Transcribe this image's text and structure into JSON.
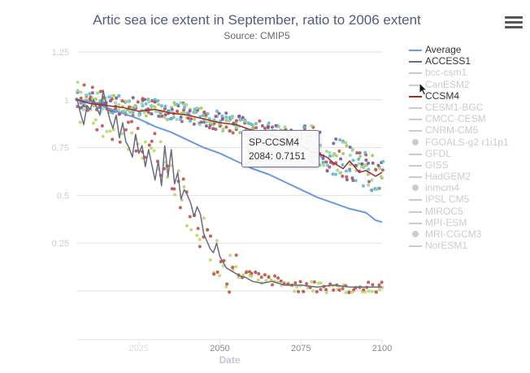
{
  "chart_data": {
    "type": "line",
    "title": "Artic sea ice extent in September, ratio to 2006 extent",
    "subtitle": "Source: CMIP5",
    "xlabel": "Date",
    "ylabel": "",
    "xlim": [
      2006,
      2100
    ],
    "ylim": [
      0,
      1.25
    ],
    "x_ticks": [
      {
        "value": 2025,
        "label": "2025"
      },
      {
        "value": 2050,
        "label": "2050"
      },
      {
        "value": 2075,
        "label": "2075"
      },
      {
        "value": 2100,
        "label": "2100"
      }
    ],
    "y_ticks": [
      {
        "value": 0.25,
        "label": "0.25"
      },
      {
        "value": 0.5,
        "label": "0.5"
      },
      {
        "value": 0.75,
        "label": "0.75"
      },
      {
        "value": 1,
        "label": "1"
      },
      {
        "value": 1.25,
        "label": "1.25"
      }
    ],
    "legend_position": "right",
    "series": [
      {
        "name": "Average",
        "style": "line",
        "color": "#6a9ae0",
        "visible": true,
        "points": [
          [
            2006,
            1.0
          ],
          [
            2010,
            0.99
          ],
          [
            2015,
            0.96
          ],
          [
            2020,
            0.93
          ],
          [
            2025,
            0.9
          ],
          [
            2030,
            0.86
          ],
          [
            2035,
            0.83
          ],
          [
            2040,
            0.79
          ],
          [
            2045,
            0.75
          ],
          [
            2050,
            0.72
          ],
          [
            2055,
            0.68
          ],
          [
            2060,
            0.64
          ],
          [
            2065,
            0.61
          ],
          [
            2070,
            0.57
          ],
          [
            2075,
            0.53
          ],
          [
            2080,
            0.49
          ],
          [
            2085,
            0.46
          ],
          [
            2090,
            0.43
          ],
          [
            2095,
            0.41
          ],
          [
            2098,
            0.37
          ],
          [
            2100,
            0.36
          ]
        ]
      },
      {
        "name": "ACCESS1",
        "style": "line",
        "color": "#6b6b80",
        "visible": true,
        "points": [
          [
            2006,
            1.0
          ],
          [
            2007,
            0.93
          ],
          [
            2008,
            0.87
          ],
          [
            2009,
            0.97
          ],
          [
            2010,
            0.95
          ],
          [
            2011,
            1.0
          ],
          [
            2012,
            0.96
          ],
          [
            2013,
            0.92
          ],
          [
            2014,
            1.05
          ],
          [
            2015,
            0.97
          ],
          [
            2016,
            0.9
          ],
          [
            2017,
            0.85
          ],
          [
            2018,
            0.92
          ],
          [
            2019,
            0.8
          ],
          [
            2020,
            0.88
          ],
          [
            2021,
            0.78
          ],
          [
            2022,
            0.75
          ],
          [
            2023,
            0.7
          ],
          [
            2024,
            0.82
          ],
          [
            2025,
            0.72
          ],
          [
            2026,
            0.76
          ],
          [
            2027,
            0.65
          ],
          [
            2028,
            0.74
          ],
          [
            2029,
            0.66
          ],
          [
            2030,
            0.58
          ],
          [
            2031,
            0.68
          ],
          [
            2032,
            0.55
          ],
          [
            2033,
            0.76
          ],
          [
            2034,
            0.6
          ],
          [
            2035,
            0.74
          ],
          [
            2036,
            0.56
          ],
          [
            2037,
            0.62
          ],
          [
            2038,
            0.48
          ],
          [
            2039,
            0.53
          ],
          [
            2040,
            0.5
          ],
          [
            2041,
            0.46
          ],
          [
            2042,
            0.39
          ],
          [
            2043,
            0.44
          ],
          [
            2044,
            0.4
          ],
          [
            2045,
            0.3
          ],
          [
            2046,
            0.26
          ],
          [
            2047,
            0.22
          ],
          [
            2048,
            0.2
          ],
          [
            2049,
            0.25
          ],
          [
            2050,
            0.18
          ],
          [
            2052,
            0.12
          ],
          [
            2054,
            0.1
          ],
          [
            2056,
            0.08
          ],
          [
            2058,
            0.07
          ],
          [
            2060,
            0.05
          ],
          [
            2063,
            0.04
          ],
          [
            2066,
            0.05
          ],
          [
            2070,
            0.03
          ],
          [
            2075,
            0.03
          ],
          [
            2080,
            0.02
          ],
          [
            2085,
            0.03
          ],
          [
            2090,
            0.02
          ],
          [
            2095,
            0.02
          ],
          [
            2100,
            0.02
          ]
        ]
      },
      {
        "name": "bcc-csm1",
        "style": "line",
        "color": "#cccccc",
        "visible": false,
        "points": []
      },
      {
        "name": "CanESM2",
        "style": "line",
        "color": "#cccccc",
        "visible": false,
        "points": []
      },
      {
        "name": "CCSM4",
        "style": "line",
        "color": "#9e2a2a",
        "visible": true,
        "points": [
          [
            2006,
            1.0
          ],
          [
            2010,
            0.98
          ],
          [
            2015,
            0.97
          ],
          [
            2020,
            0.96
          ],
          [
            2025,
            0.94
          ],
          [
            2030,
            0.95
          ],
          [
            2035,
            0.93
          ],
          [
            2040,
            0.92
          ],
          [
            2045,
            0.9
          ],
          [
            2050,
            0.88
          ],
          [
            2055,
            0.87
          ],
          [
            2060,
            0.84
          ],
          [
            2065,
            0.82
          ],
          [
            2070,
            0.8
          ],
          [
            2075,
            0.76
          ],
          [
            2078,
            0.73
          ],
          [
            2080,
            0.72
          ],
          [
            2083,
            0.7
          ],
          [
            2085,
            0.67
          ],
          [
            2088,
            0.64
          ],
          [
            2090,
            0.68
          ],
          [
            2093,
            0.62
          ],
          [
            2095,
            0.63
          ],
          [
            2098,
            0.6
          ],
          [
            2100,
            0.62
          ]
        ]
      },
      {
        "name": "CESM1-BGC",
        "style": "line",
        "color": "#cccccc",
        "visible": false,
        "points": []
      },
      {
        "name": "CMCC-CESM",
        "style": "line",
        "color": "#cccccc",
        "visible": false,
        "points": []
      },
      {
        "name": "CNRM-CM5",
        "style": "line",
        "color": "#cccccc",
        "visible": false,
        "points": []
      },
      {
        "name": "FGOALS-g2 r1i1p1",
        "style": "scatter",
        "color": "#cccccc",
        "visible": false,
        "points": []
      },
      {
        "name": "GFDL",
        "style": "line",
        "color": "#cccccc",
        "visible": false,
        "points": []
      },
      {
        "name": "GISS",
        "style": "line",
        "color": "#cccccc",
        "visible": false,
        "points": []
      },
      {
        "name": "HadGEM2",
        "style": "line",
        "color": "#cccccc",
        "visible": false,
        "points": []
      },
      {
        "name": "inmcm4",
        "style": "scatter",
        "color": "#cccccc",
        "visible": false,
        "points": []
      },
      {
        "name": "IPSL CM5",
        "style": "line",
        "color": "#cccccc",
        "visible": false,
        "points": []
      },
      {
        "name": "MIROC5",
        "style": "line",
        "color": "#cccccc",
        "visible": false,
        "points": []
      },
      {
        "name": "MPI-ESM",
        "style": "line",
        "color": "#cccccc",
        "visible": false,
        "points": []
      },
      {
        "name": "MRI-CGCM3",
        "style": "scatter",
        "color": "#cccccc",
        "visible": false,
        "points": []
      },
      {
        "name": "NorESM1",
        "style": "line",
        "color": "#cccccc",
        "visible": false,
        "points": []
      }
    ],
    "scatter_clusters": [
      {
        "color": "#a7c957",
        "upper": true
      },
      {
        "color": "#b9d96a",
        "upper": false
      },
      {
        "color": "#c0504d",
        "upper": true
      },
      {
        "color": "#c0504d",
        "upper": false
      },
      {
        "color": "#7a5a9a",
        "upper": true
      },
      {
        "color": "#5bb8d8",
        "upper": true
      },
      {
        "color": "#9ad3a0",
        "upper": true
      }
    ],
    "tooltip": {
      "series": "SP-CCSM4",
      "text": "2084: 0.7151"
    }
  }
}
